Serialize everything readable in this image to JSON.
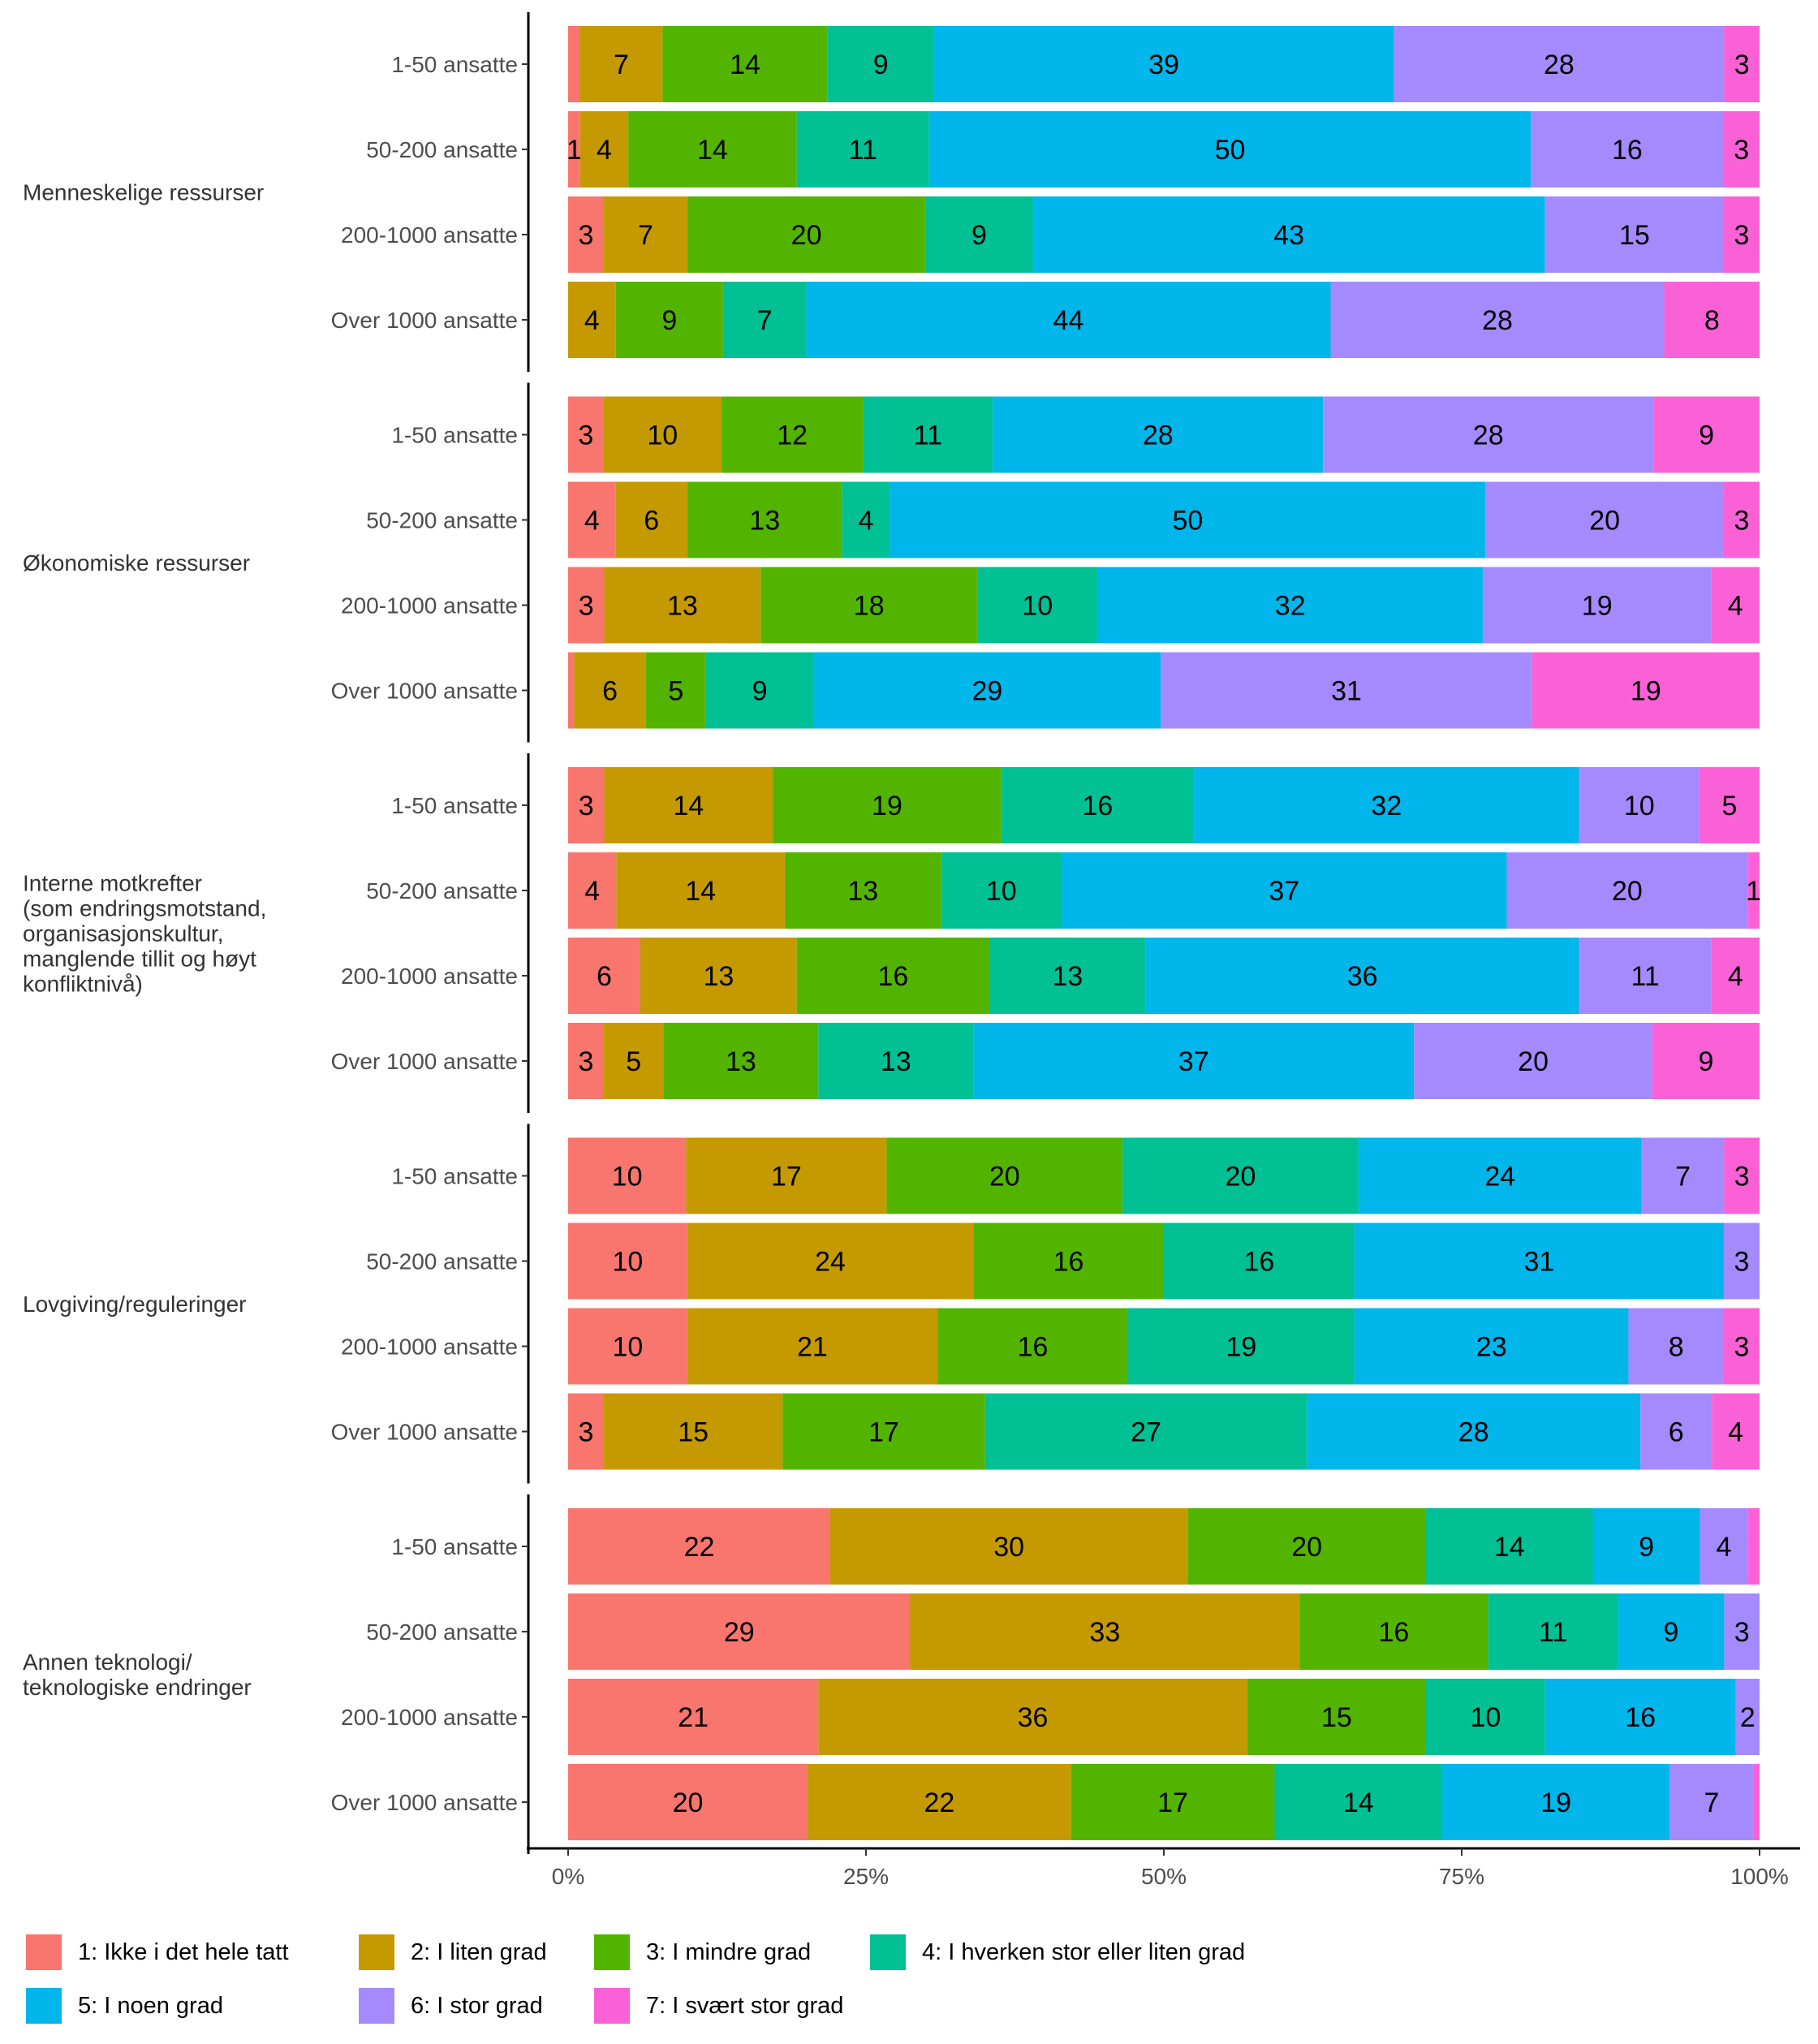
{
  "chart_data": {
    "type": "bar",
    "orientation": "horizontal",
    "stacked": "percent",
    "title": "",
    "xlabel": "",
    "ylabel": "",
    "xlim": [
      0,
      100
    ],
    "x_ticks": [
      "0%",
      "25%",
      "50%",
      "75%",
      "100%"
    ],
    "x_tick_values": [
      0,
      25,
      50,
      75,
      100
    ],
    "grid": false,
    "legend_position": "bottom",
    "legend": [
      {
        "name": "1: Ikke i det hele tatt",
        "color": "#F8766D"
      },
      {
        "name": "2: I liten grad",
        "color": "#C49A00"
      },
      {
        "name": "3: I mindre grad",
        "color": "#53B400"
      },
      {
        "name": "4: I hverken stor eller liten grad",
        "color": "#00C094"
      },
      {
        "name": "5: I noen grad",
        "color": "#00B6EB"
      },
      {
        "name": "6: I stor grad",
        "color": "#A58AFF"
      },
      {
        "name": "7: I svært stor grad",
        "color": "#FB61D7"
      }
    ],
    "groups": [
      {
        "label": [
          "Menneskelige ressurser"
        ],
        "rows": [
          {
            "label": "1-50 ansatte",
            "values": [
              1,
              7,
              14,
              9,
              39,
              28,
              3
            ],
            "labels": [
              "",
              "7",
              "14",
              "9",
              "39",
              "28",
              "3"
            ]
          },
          {
            "label": "50-200 ansatte",
            "values": [
              1,
              4,
              14,
              11,
              50,
              16,
              3
            ],
            "labels": [
              "1",
              "4",
              "14",
              "11",
              "50",
              "16",
              "3"
            ]
          },
          {
            "label": "200-1000 ansatte",
            "values": [
              3,
              7,
              20,
              9,
              43,
              15,
              3
            ],
            "labels": [
              "3",
              "7",
              "20",
              "9",
              "43",
              "15",
              "3"
            ]
          },
          {
            "label": "Over 1000 ansatte",
            "values": [
              0,
              4,
              9,
              7,
              44,
              28,
              8
            ],
            "labels": [
              "",
              "4",
              "9",
              "7",
              "44",
              "28",
              "8"
            ]
          }
        ]
      },
      {
        "label": [
          "Økonomiske ressurser"
        ],
        "rows": [
          {
            "label": "1-50 ansatte",
            "values": [
              3,
              10,
              12,
              11,
              28,
              28,
              9
            ],
            "labels": [
              "3",
              "10",
              "12",
              "11",
              "28",
              "28",
              "9"
            ]
          },
          {
            "label": "50-200 ansatte",
            "values": [
              4,
              6,
              13,
              4,
              50,
              20,
              3
            ],
            "labels": [
              "4",
              "6",
              "13",
              "4",
              "50",
              "20",
              "3"
            ]
          },
          {
            "label": "200-1000 ansatte",
            "values": [
              3,
              13,
              18,
              10,
              32,
              19,
              4
            ],
            "labels": [
              "3",
              "13",
              "18",
              "10",
              "32",
              "19",
              "4"
            ]
          },
          {
            "label": "Over 1000 ansatte",
            "values": [
              0.5,
              6,
              5,
              9,
              29,
              31,
              19
            ],
            "labels": [
              "",
              "6",
              "5",
              "9",
              "29",
              "31",
              "19"
            ]
          }
        ]
      },
      {
        "label": [
          "Interne motkrefter",
          "(som endringsmotstand,",
          "organisasjonskultur,",
          "manglende tillit og høyt",
          "konfliktnivå)"
        ],
        "rows": [
          {
            "label": "1-50 ansatte",
            "values": [
              3,
              14,
              19,
              16,
              32,
              10,
              5
            ],
            "labels": [
              "3",
              "14",
              "19",
              "16",
              "32",
              "10",
              "5"
            ]
          },
          {
            "label": "50-200 ansatte",
            "values": [
              4,
              14,
              13,
              10,
              37,
              20,
              1
            ],
            "labels": [
              "4",
              "14",
              "13",
              "10",
              "37",
              "20",
              "1"
            ]
          },
          {
            "label": "200-1000 ansatte",
            "values": [
              6,
              13,
              16,
              13,
              36,
              11,
              4
            ],
            "labels": [
              "6",
              "13",
              "16",
              "13",
              "36",
              "11",
              "4"
            ]
          },
          {
            "label": "Over 1000 ansatte",
            "values": [
              3,
              5,
              13,
              13,
              37,
              20,
              9
            ],
            "labels": [
              "3",
              "5",
              "13",
              "13",
              "37",
              "20",
              "9"
            ]
          }
        ]
      },
      {
        "label": [
          "Lovgiving/reguleringer"
        ],
        "rows": [
          {
            "label": "1-50 ansatte",
            "values": [
              10,
              17,
              20,
              20,
              24,
              7,
              3
            ],
            "labels": [
              "10",
              "17",
              "20",
              "20",
              "24",
              "7",
              "3"
            ]
          },
          {
            "label": "50-200 ansatte",
            "values": [
              10,
              24,
              16,
              16,
              31,
              3,
              0
            ],
            "labels": [
              "10",
              "24",
              "16",
              "16",
              "31",
              "3",
              ""
            ]
          },
          {
            "label": "200-1000 ansatte",
            "values": [
              10,
              21,
              16,
              19,
              23,
              8,
              3
            ],
            "labels": [
              "10",
              "21",
              "16",
              "19",
              "23",
              "8",
              "3"
            ]
          },
          {
            "label": "Over 1000 ansatte",
            "values": [
              3,
              15,
              17,
              27,
              28,
              6,
              4
            ],
            "labels": [
              "3",
              "15",
              "17",
              "27",
              "28",
              "6",
              "4"
            ]
          }
        ]
      },
      {
        "label": [
          "Annen teknologi/",
          "teknologiske endringer"
        ],
        "rows": [
          {
            "label": "1-50 ansatte",
            "values": [
              22,
              30,
              20,
              14,
              9,
              4,
              1
            ],
            "labels": [
              "22",
              "30",
              "20",
              "14",
              "9",
              "4",
              ""
            ]
          },
          {
            "label": "50-200 ansatte",
            "values": [
              29,
              33,
              16,
              11,
              9,
              3,
              0
            ],
            "labels": [
              "29",
              "33",
              "16",
              "11",
              "9",
              "3",
              ""
            ]
          },
          {
            "label": "200-1000 ansatte",
            "values": [
              21,
              36,
              15,
              10,
              16,
              2,
              0
            ],
            "labels": [
              "21",
              "36",
              "15",
              "10",
              "16",
              "2",
              ""
            ]
          },
          {
            "label": "Over 1000 ansatte",
            "values": [
              20,
              22,
              17,
              14,
              19,
              7,
              0.5
            ],
            "labels": [
              "20",
              "22",
              "17",
              "14",
              "19",
              "7",
              ""
            ]
          }
        ]
      }
    ]
  }
}
